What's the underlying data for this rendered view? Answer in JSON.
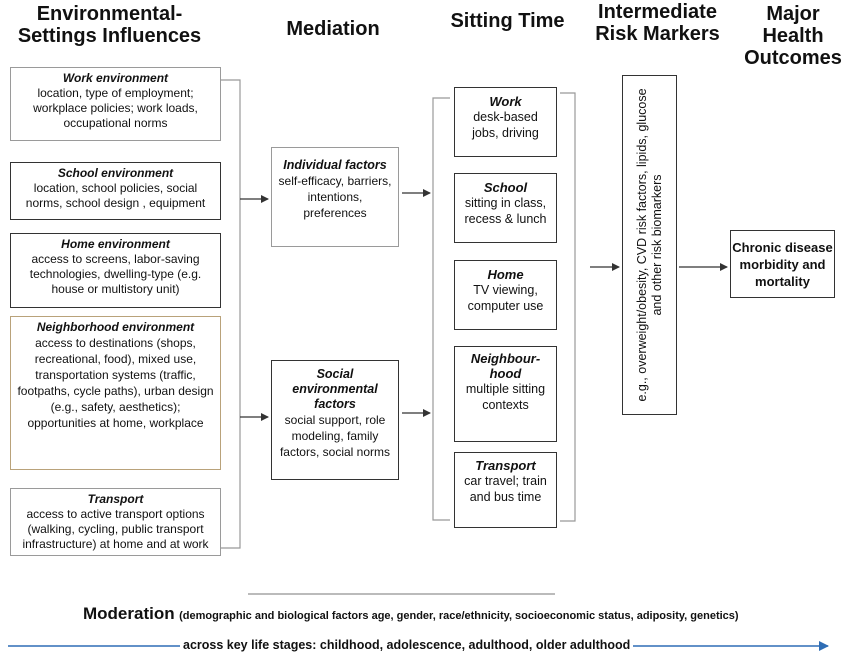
{
  "headers": {
    "environmental": "Environmental-\nSettings Influences",
    "mediation": "Mediation",
    "sitting": "Sitting Time",
    "intermediate": "Intermediate\nRisk Markers",
    "major": "Major\nHealth\nOutcomes"
  },
  "environment_boxes": [
    {
      "title": "Work environment",
      "body": "location, type of employment; workplace policies; work loads, occupational  norms"
    },
    {
      "title": "School environment",
      "body": "location, school policies, social norms, school design , equipment"
    },
    {
      "title": "Home environment",
      "body": "access to screens, labor-saving technologies, dwelling-type (e.g. house or multistory unit)"
    },
    {
      "title": "Neighborhood environment",
      "body": "access to destinations (shops, recreational, food), mixed use, transportation systems (traffic, footpaths, cycle paths), urban design (e.g., safety, aesthetics); opportunities at home, workplace"
    },
    {
      "title": "Transport",
      "body": "access to active transport options (walking, cycling, public transport infrastructure) at home and at work"
    }
  ],
  "mediation_boxes": [
    {
      "title": "Individual factors",
      "body": "self-efficacy, barriers, intentions, preferences"
    },
    {
      "title": "Social environmental factors",
      "body": "social support, role modeling, family factors, social norms"
    }
  ],
  "sitting_boxes": [
    {
      "title": "Work",
      "body": "desk-based jobs, driving"
    },
    {
      "title": "School",
      "body": "sitting in class, recess & lunch"
    },
    {
      "title": "Home",
      "body": "TV viewing, computer use"
    },
    {
      "title": "Neighbour-hood",
      "body": "multiple sitting contexts"
    },
    {
      "title": "Transport",
      "body": "car travel; train and bus time"
    }
  ],
  "risk_markers": "e.g., overweight/obesity, CVD risk factors, lipids, glucose and other risk biomarkers",
  "outcome": "Chronic disease morbidity and mortality",
  "moderation": {
    "title": "Moderation",
    "detail": "(demographic and  biological factors age, gender,  race/ethnicity, socioeconomic status, adiposity, genetics)"
  },
  "life_stages": "across key life stages: childhood, adolescence, adulthood, older adulthood",
  "colors": {
    "arrow": "#2e6db5",
    "line": "#333333",
    "box_light": "#9a9a9a",
    "box_tan": "#b9a27a"
  }
}
